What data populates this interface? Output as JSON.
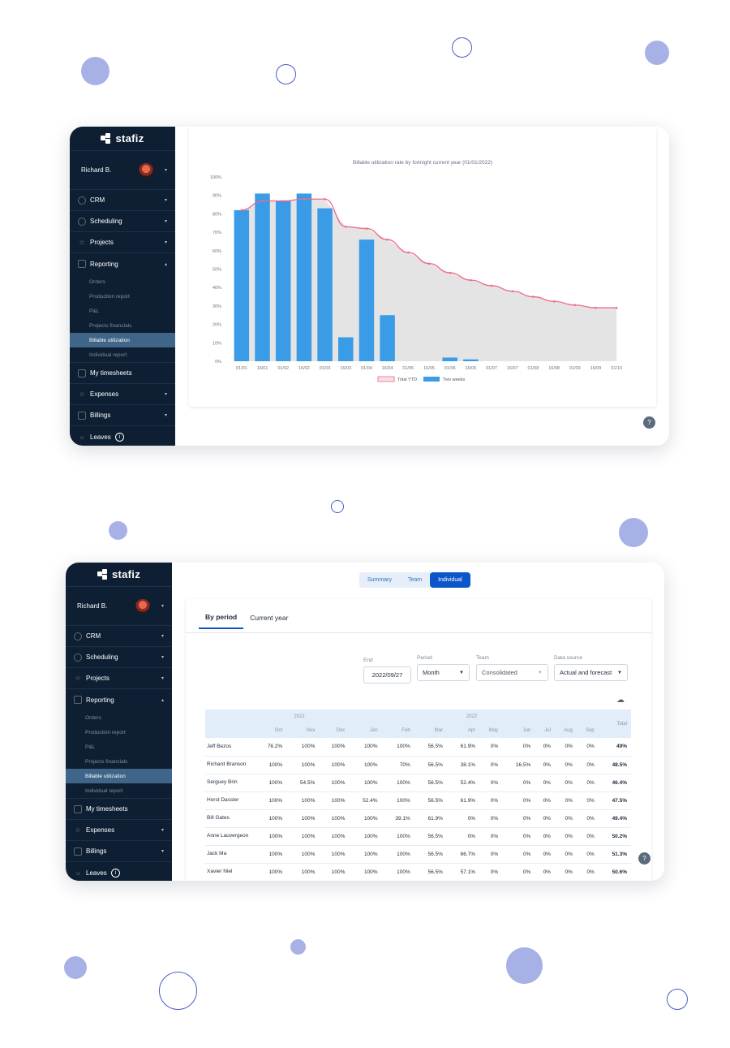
{
  "app": {
    "brand": "stafiz",
    "user_name": "Richard B."
  },
  "sidebar": {
    "items": [
      {
        "label": "CRM",
        "icon": "user-circle-icon",
        "caret": "▾"
      },
      {
        "label": "Scheduling",
        "icon": "clock-icon",
        "caret": "▾"
      },
      {
        "label": "Projects",
        "icon": "star-icon",
        "caret": "▾"
      },
      {
        "label": "Reporting",
        "icon": "bank-icon",
        "caret": "▴"
      }
    ],
    "reporting_sub": [
      "Orders",
      "Production report",
      "P&L",
      "Projects financials",
      "Billable utilization",
      "Individual report"
    ],
    "active_sub": "Billable utilization",
    "items_after": [
      {
        "label": "My timesheets",
        "icon": "calendar-icon",
        "caret": ""
      },
      {
        "label": "Expenses",
        "icon": "star-icon",
        "caret": "▾"
      },
      {
        "label": "Billings",
        "icon": "document-icon",
        "caret": "▾"
      },
      {
        "label": "Leaves",
        "icon": "sun-icon",
        "caret": ""
      }
    ],
    "leaves_info": "i"
  },
  "help_label": "?",
  "chart_data": {
    "type": "bar",
    "title": "Billable utilization rate by fortnight current year (01/01/2022)",
    "categories": [
      "01/01",
      "16/01",
      "01/02",
      "16/02",
      "01/03",
      "16/03",
      "01/04",
      "16/04",
      "01/05",
      "16/05",
      "01/06",
      "16/06",
      "01/07",
      "16/07",
      "01/08",
      "16/08",
      "01/09",
      "16/09",
      "01/10"
    ],
    "yticks": [
      "100%",
      "90%",
      "80%",
      "70%",
      "60%",
      "50%",
      "40%",
      "30%",
      "20%",
      "10%",
      "0%"
    ],
    "ylim": [
      0,
      100
    ],
    "series": [
      {
        "name": "Two weeks",
        "type": "bar",
        "color": "#3a9be6",
        "values": [
          82,
          91,
          87,
          91,
          83,
          13,
          66,
          25,
          0,
          0,
          2,
          1,
          0,
          0,
          0,
          0,
          0,
          0,
          0
        ]
      },
      {
        "name": "Total YTD",
        "type": "area-line",
        "color": "#f06a86",
        "fill": "#e4e4e4",
        "values": [
          82,
          87,
          87,
          88,
          88,
          73,
          72,
          66,
          59,
          53,
          48,
          44,
          41,
          38,
          35,
          32.5,
          30.5,
          29,
          29
        ]
      }
    ],
    "legend": "bottom",
    "grid": false
  },
  "report": {
    "top_tabs": [
      "Summary",
      "Team",
      "Individual"
    ],
    "active_top_tab": "Individual",
    "period_tabs": [
      "By period",
      "Current year"
    ],
    "active_period_tab": "By period",
    "filters": {
      "end": {
        "label": "End",
        "value": "2022/09/27"
      },
      "period": {
        "label": "Period",
        "value": "Month"
      },
      "team": {
        "label": "Team",
        "value": "Consolidated"
      },
      "source": {
        "label": "Data source",
        "value": "Actual and forecast"
      }
    },
    "download_icon": "cloud-download-icon",
    "years": [
      "2021",
      "2022"
    ],
    "months": [
      "Oct",
      "Nov",
      "Dec",
      "Jan",
      "Feb",
      "Mar",
      "Apr",
      "May",
      "Jun",
      "Jul",
      "Aug",
      "Sep"
    ],
    "total_label": "Total",
    "rows": [
      {
        "name": "Jeff Bezos",
        "values": [
          "76.2%",
          "100%",
          "100%",
          "100%",
          "100%",
          "56.5%",
          "61.9%",
          "0%",
          "0%",
          "0%",
          "0%",
          "0%"
        ],
        "total": "49%"
      },
      {
        "name": "Richard Branson",
        "values": [
          "100%",
          "100%",
          "100%",
          "100%",
          "70%",
          "56.5%",
          "38.1%",
          "0%",
          "16.5%",
          "0%",
          "0%",
          "0%"
        ],
        "total": "48.5%"
      },
      {
        "name": "Serguey Brin",
        "values": [
          "100%",
          "54.5%",
          "100%",
          "100%",
          "100%",
          "56.5%",
          "52.4%",
          "0%",
          "0%",
          "0%",
          "0%",
          "0%"
        ],
        "total": "46.4%"
      },
      {
        "name": "Horst Dassler",
        "values": [
          "100%",
          "100%",
          "100%",
          "52.4%",
          "100%",
          "56.5%",
          "61.9%",
          "0%",
          "0%",
          "0%",
          "0%",
          "0%"
        ],
        "total": "47.5%"
      },
      {
        "name": "Bill Gates",
        "values": [
          "100%",
          "100%",
          "100%",
          "100%",
          "39.1%",
          "61.9%",
          "0%",
          "0%",
          "0%",
          "0%",
          "0%",
          "0%"
        ],
        "total": "49.4%"
      },
      {
        "name": "Anne Lauvergeon",
        "values": [
          "100%",
          "100%",
          "100%",
          "100%",
          "100%",
          "56.5%",
          "0%",
          "0%",
          "0%",
          "0%",
          "0%",
          "0%"
        ],
        "total": "50.2%"
      },
      {
        "name": "Jack Ma",
        "values": [
          "100%",
          "100%",
          "100%",
          "100%",
          "100%",
          "56.5%",
          "66.7%",
          "0%",
          "0%",
          "0%",
          "0%",
          "0%"
        ],
        "total": "51.3%"
      },
      {
        "name": "Xavier Niel",
        "values": [
          "100%",
          "100%",
          "100%",
          "100%",
          "100%",
          "56.5%",
          "57.1%",
          "0%",
          "0%",
          "0%",
          "0%",
          "0%"
        ],
        "total": "50.6%"
      }
    ]
  },
  "decor_color": "#a8b1e6"
}
